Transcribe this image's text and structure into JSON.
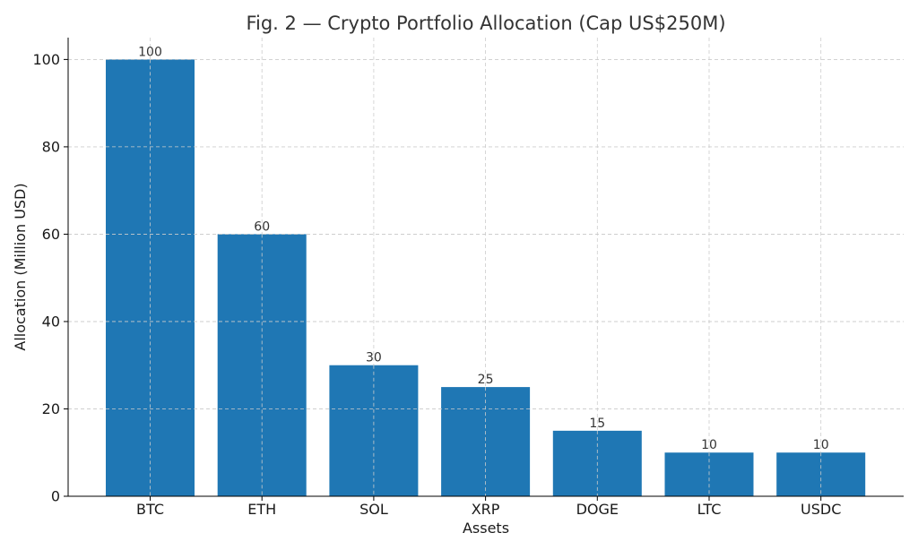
{
  "chart_data": {
    "type": "bar",
    "title": "Fig. 2 — Crypto Portfolio Allocation (Cap US$250M)",
    "xlabel": "Assets",
    "ylabel": "Allocation (Million USD)",
    "categories": [
      "BTC",
      "ETH",
      "SOL",
      "XRP",
      "DOGE",
      "LTC",
      "USDC"
    ],
    "values": [
      100,
      60,
      30,
      25,
      15,
      10,
      10
    ],
    "data_labels": [
      "100",
      "60",
      "30",
      "25",
      "15",
      "10",
      "10"
    ],
    "ylim": [
      0,
      105
    ],
    "yticks": [
      0,
      20,
      40,
      60,
      80,
      100
    ],
    "grid": true,
    "bar_color": "#1f77b4"
  }
}
